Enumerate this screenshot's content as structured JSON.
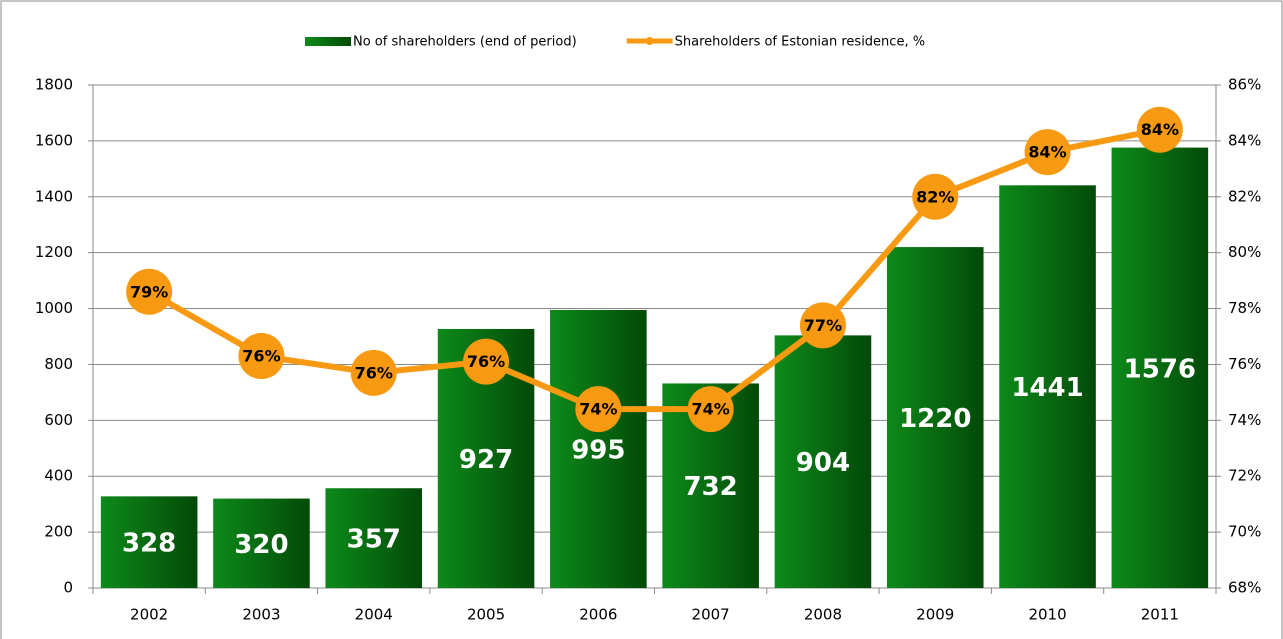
{
  "chart_data": {
    "type": "bar-line",
    "categories": [
      "2002",
      "2003",
      "2004",
      "2005",
      "2006",
      "2007",
      "2008",
      "2009",
      "2010",
      "2011"
    ],
    "series": [
      {
        "name": "No of shareholders (end of period)",
        "type": "bar",
        "color": "#0a7a14",
        "values": [
          328,
          320,
          357,
          927,
          995,
          732,
          904,
          1220,
          1441,
          1576
        ]
      },
      {
        "name": "Shareholders of Estonian residence, %",
        "type": "line",
        "axis": "y2",
        "color": "#f79a12",
        "values": [
          78.6,
          76.3,
          75.7,
          76.1,
          74.4,
          74.4,
          77.4,
          82.0,
          83.6,
          84.4
        ],
        "value_labels": [
          "79%",
          "76%",
          "76%",
          "76%",
          "74%",
          "74%",
          "77%",
          "82%",
          "84%",
          "84%"
        ]
      }
    ],
    "ylim": [
      0,
      1800
    ],
    "yticks": [
      0,
      200,
      400,
      600,
      800,
      1000,
      1200,
      1400,
      1600,
      1800
    ],
    "y2lim": [
      68,
      86
    ],
    "y2ticks": [
      {
        "value": 68,
        "label": "68%"
      },
      {
        "value": 70,
        "label": "70%"
      },
      {
        "value": 72,
        "label": "72%"
      },
      {
        "value": 74,
        "label": "74%"
      },
      {
        "value": 76,
        "label": "76%"
      },
      {
        "value": 78,
        "label": "78%"
      },
      {
        "value": 80,
        "label": "80%"
      },
      {
        "value": 82,
        "label": "82%"
      },
      {
        "value": 84,
        "label": "84%"
      },
      {
        "value": 86,
        "label": "86%"
      }
    ],
    "grid": true,
    "legend": "top"
  }
}
